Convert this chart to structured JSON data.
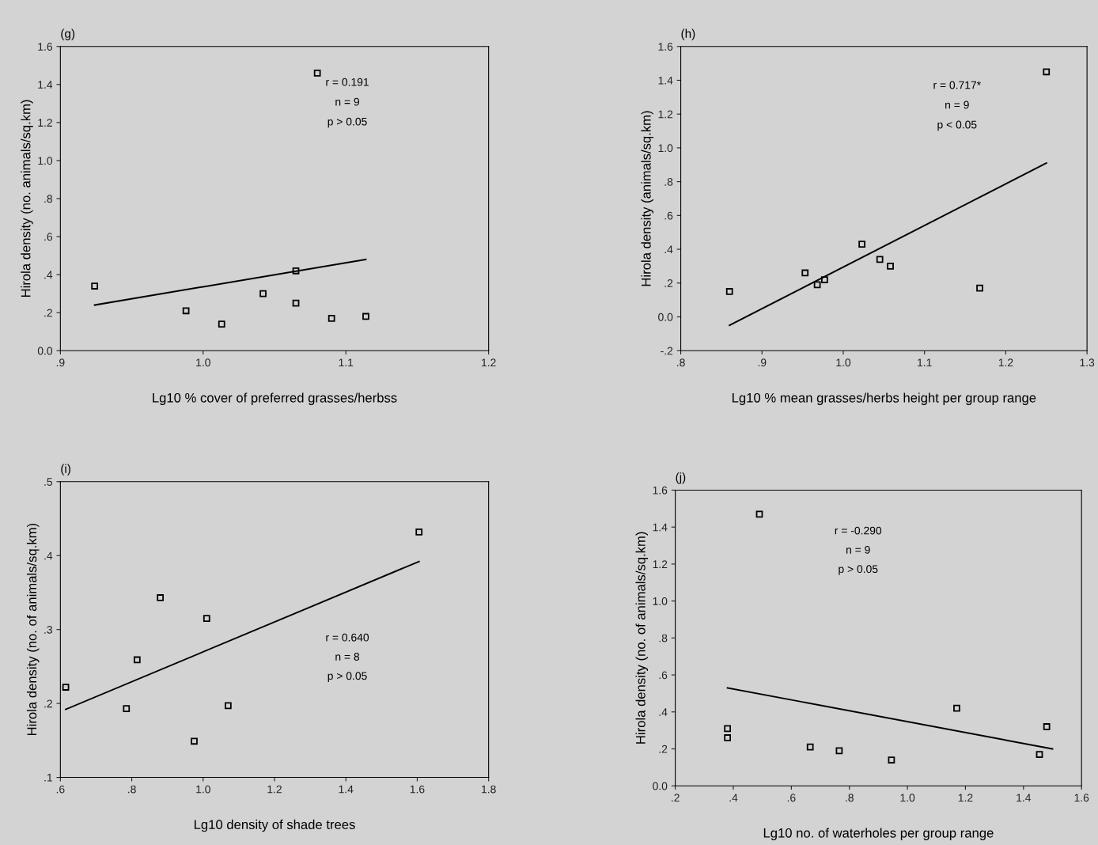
{
  "chart_data": [
    {
      "type": "scatter",
      "title": "(g)",
      "xlabel": "Lg10 % cover of preferred grasses/herbss",
      "ylabel": "Hirola density (no. animals/sq.km)",
      "xlim": [
        0.9,
        1.2
      ],
      "ylim": [
        0,
        1.6
      ],
      "xticks": [
        {
          "value": 0.9,
          "label": ".9"
        },
        {
          "value": 1.0,
          "label": "1.0"
        },
        {
          "value": 1.1,
          "label": "1.1"
        },
        {
          "value": 1.2,
          "label": "1.2"
        }
      ],
      "yticks": [
        {
          "value": 0,
          "label": "0.0"
        },
        {
          "value": 0.2,
          "label": ".2"
        },
        {
          "value": 0.4,
          "label": ".4"
        },
        {
          "value": 0.6,
          "label": ".6"
        },
        {
          "value": 0.8,
          "label": ".8"
        },
        {
          "value": 1.0,
          "label": "1.0"
        },
        {
          "value": 1.2,
          "label": "1.2"
        },
        {
          "value": 1.4,
          "label": "1.4"
        },
        {
          "value": 1.6,
          "label": "1.6"
        }
      ],
      "annotations": [
        "r = 0.191",
        "n = 9",
        "p > 0.05"
      ],
      "grid": false,
      "legend": false,
      "series": [
        {
          "marker": "square",
          "color": "#000000",
          "x": [
            0.924,
            0.988,
            1.013,
            1.042,
            1.065,
            1.065,
            1.08,
            1.09,
            1.114
          ],
          "values": [
            0.34,
            0.21,
            0.14,
            0.3,
            0.25,
            0.42,
            1.46,
            0.17,
            0.18
          ]
        },
        {
          "type": "line",
          "marker": "none",
          "color": "#000000",
          "x": [
            0.924,
            1.114
          ],
          "values": [
            0.24,
            0.48
          ]
        }
      ]
    },
    {
      "type": "scatter",
      "title": "(h)",
      "xlabel": "Lg10 % mean grasses/herbs height per group range",
      "ylabel": "Hirola density (animals/sq.km)",
      "xlim": [
        0.8,
        1.3
      ],
      "ylim": [
        -0.2,
        1.6
      ],
      "xticks": [
        {
          "value": 0.8,
          "label": ".8"
        },
        {
          "value": 0.9,
          "label": ".9"
        },
        {
          "value": 1.0,
          "label": "1.0"
        },
        {
          "value": 1.1,
          "label": "1.1"
        },
        {
          "value": 1.2,
          "label": "1.2"
        },
        {
          "value": 1.3,
          "label": "1.3"
        }
      ],
      "yticks": [
        {
          "value": -0.2,
          "label": "-.2"
        },
        {
          "value": 0,
          "label": "0.0"
        },
        {
          "value": 0.2,
          "label": ".2"
        },
        {
          "value": 0.4,
          "label": ".4"
        },
        {
          "value": 0.6,
          "label": ".6"
        },
        {
          "value": 0.8,
          "label": ".8"
        },
        {
          "value": 1.0,
          "label": "1.0"
        },
        {
          "value": 1.2,
          "label": "1.2"
        },
        {
          "value": 1.4,
          "label": "1.4"
        },
        {
          "value": 1.6,
          "label": "1.6"
        }
      ],
      "annotations": [
        "r = 0.717*",
        "n = 9",
        "p < 0.05"
      ],
      "grid": false,
      "legend": false,
      "series": [
        {
          "marker": "square",
          "color": "#000000",
          "x": [
            0.86,
            0.953,
            0.968,
            0.977,
            1.023,
            1.045,
            1.058,
            1.168,
            1.25
          ],
          "values": [
            0.15,
            0.26,
            0.19,
            0.22,
            0.43,
            0.34,
            0.3,
            0.17,
            1.45
          ]
        },
        {
          "type": "line",
          "marker": "none",
          "color": "#000000",
          "x": [
            0.86,
            1.25
          ],
          "values": [
            -0.05,
            0.91
          ]
        }
      ]
    },
    {
      "type": "scatter",
      "title": "(i)",
      "xlabel": "Lg10 density of shade trees",
      "ylabel": "Hirola density (no. of animals/sq.km)",
      "xlim": [
        0.6,
        1.8
      ],
      "ylim": [
        0.1,
        0.5
      ],
      "xticks": [
        {
          "value": 0.6,
          "label": ".6"
        },
        {
          "value": 0.8,
          "label": ".8"
        },
        {
          "value": 1.0,
          "label": "1.0"
        },
        {
          "value": 1.2,
          "label": "1.2"
        },
        {
          "value": 1.4,
          "label": "1.4"
        },
        {
          "value": 1.6,
          "label": "1.6"
        },
        {
          "value": 1.8,
          "label": "1.8"
        }
      ],
      "yticks": [
        {
          "value": 0.1,
          "label": ".1"
        },
        {
          "value": 0.2,
          "label": ".2"
        },
        {
          "value": 0.3,
          "label": ".3"
        },
        {
          "value": 0.4,
          "label": ".4"
        },
        {
          "value": 0.5,
          "label": ".5"
        }
      ],
      "annotations": [
        "r = 0.640",
        "n = 8",
        "p > 0.05"
      ],
      "grid": false,
      "legend": false,
      "series": [
        {
          "marker": "square",
          "color": "#000000",
          "x": [
            0.615,
            0.785,
            0.815,
            0.88,
            0.975,
            1.01,
            1.07,
            1.605
          ],
          "values": [
            0.222,
            0.193,
            0.259,
            0.343,
            0.149,
            0.315,
            0.197,
            0.432
          ]
        },
        {
          "type": "line",
          "marker": "none",
          "color": "#000000",
          "x": [
            0.615,
            1.605
          ],
          "values": [
            0.192,
            0.392
          ]
        }
      ]
    },
    {
      "type": "scatter",
      "title": "(j)",
      "xlabel": "Lg10 no. of waterholes per group range",
      "ylabel": "Hirola density (no. of animals/sq.km)",
      "xlim": [
        0.2,
        1.6
      ],
      "ylim": [
        0,
        1.6
      ],
      "xticks": [
        {
          "value": 0.2,
          "label": ".2"
        },
        {
          "value": 0.4,
          "label": ".4"
        },
        {
          "value": 0.6,
          "label": ".6"
        },
        {
          "value": 0.8,
          "label": ".8"
        },
        {
          "value": 1.0,
          "label": "1.0"
        },
        {
          "value": 1.2,
          "label": "1.2"
        },
        {
          "value": 1.4,
          "label": "1.4"
        },
        {
          "value": 1.6,
          "label": "1.6"
        }
      ],
      "yticks": [
        {
          "value": 0,
          "label": "0.0"
        },
        {
          "value": 0.2,
          "label": ".2"
        },
        {
          "value": 0.4,
          "label": ".4"
        },
        {
          "value": 0.6,
          "label": ".6"
        },
        {
          "value": 0.8,
          "label": ".8"
        },
        {
          "value": 1.0,
          "label": "1.0"
        },
        {
          "value": 1.2,
          "label": "1.2"
        },
        {
          "value": 1.4,
          "label": "1.4"
        },
        {
          "value": 1.6,
          "label": "1.6"
        }
      ],
      "annotations": [
        "r = -0.290",
        "n = 9",
        "p > 0.05"
      ],
      "grid": false,
      "legend": false,
      "series": [
        {
          "marker": "square",
          "color": "#000000",
          "x": [
            0.38,
            0.38,
            0.49,
            0.665,
            0.765,
            0.945,
            1.17,
            1.455,
            1.48
          ],
          "values": [
            0.31,
            0.26,
            1.47,
            0.21,
            0.19,
            0.14,
            0.42,
            0.17,
            0.32
          ]
        },
        {
          "type": "line",
          "marker": "none",
          "color": "#000000",
          "x": [
            0.38,
            1.5
          ],
          "values": [
            0.53,
            0.2
          ]
        }
      ]
    }
  ]
}
